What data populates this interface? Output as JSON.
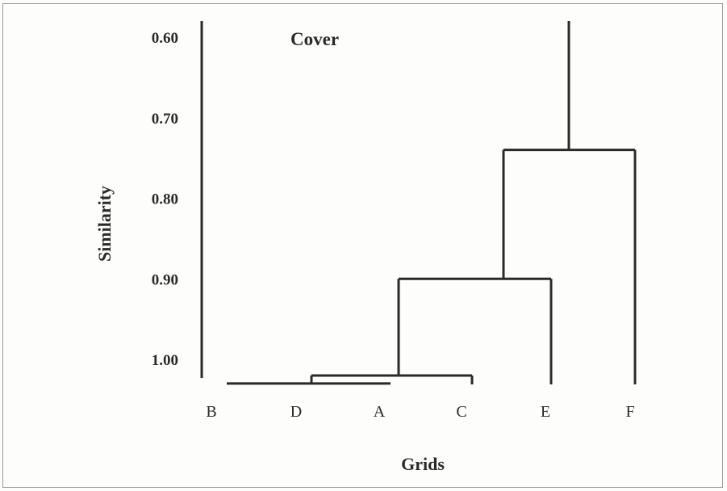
{
  "chart_data": {
    "type": "dendrogram",
    "title": "Cover",
    "xlabel": "Grids",
    "ylabel": "Similarity",
    "y_ticks": [
      "0.60",
      "0.70",
      "0.80",
      "0.90",
      "1.00"
    ],
    "ylim": [
      0.58,
      1.03
    ],
    "leaves": [
      "B",
      "D",
      "A",
      "C",
      "E",
      "F"
    ],
    "merges": [
      {
        "members": [
          "D",
          "A"
        ],
        "similarity": 1.03
      },
      {
        "members": [
          "D,A",
          "C"
        ],
        "similarity": 1.02
      },
      {
        "members": [
          "D,A,C",
          "E"
        ],
        "similarity": 0.9
      },
      {
        "members": [
          "D,A,C,E",
          "F"
        ],
        "similarity": 0.74
      }
    ],
    "unmerged_leaf": {
      "name": "B",
      "top_similarity": 0.58
    },
    "root_top_similarity": 0.58,
    "grid": false,
    "legend": "none"
  }
}
